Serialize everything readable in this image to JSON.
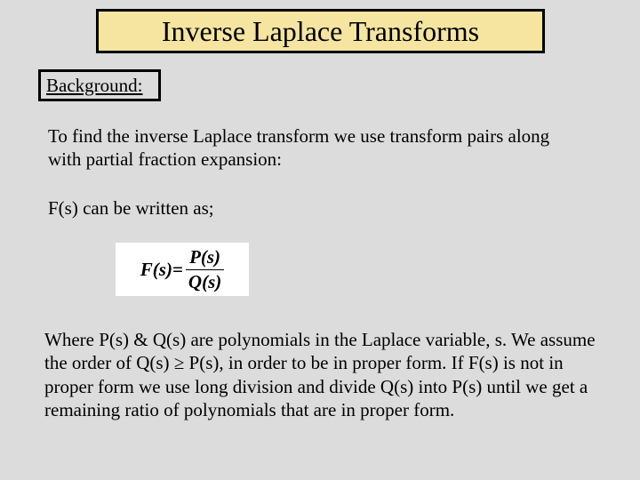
{
  "title": "Inverse Laplace Transforms",
  "subtitle": "Background:",
  "paragraph1": "To find the inverse Laplace transform we use transform pairs along with partial fraction expansion:",
  "paragraph2": "F(s) can be written as;",
  "formula": {
    "left": "F(s)=",
    "numerator": "P(s)",
    "denominator": "Q(s)"
  },
  "paragraph3": "Where P(s) & Q(s) are polynomials in the Laplace variable, s. We assume the order of Q(s) ≥ P(s), in order to be in proper form.  If F(s) is not in proper form we use long division and divide Q(s) into P(s) until we get a remaining ratio of polynomials that are in proper form.",
  "colors": {
    "background": "#dcdcdc",
    "title_bg": "#f5e5a0",
    "formula_bg": "#ffffff",
    "text": "#000000",
    "border": "#000000"
  },
  "fonts": {
    "family": "Times New Roman",
    "title_size": 32,
    "body_size": 21
  }
}
